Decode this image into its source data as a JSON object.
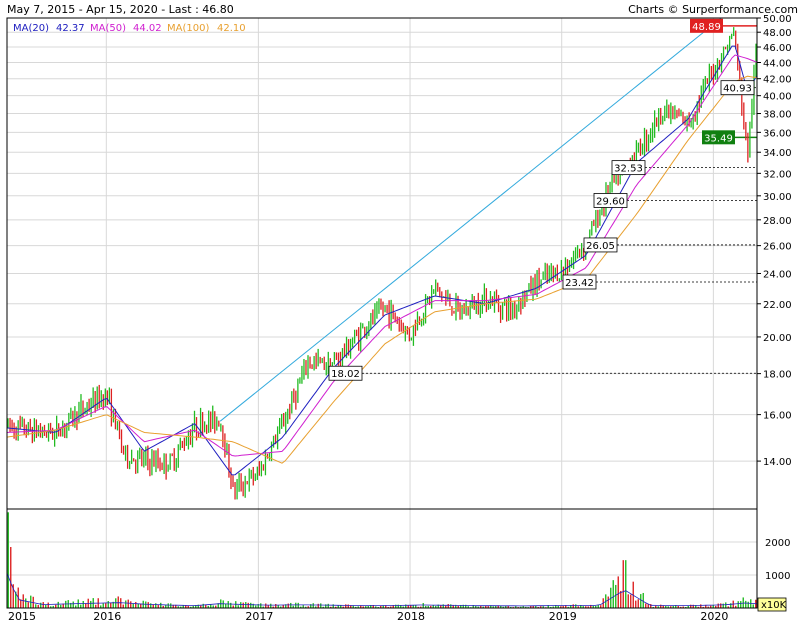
{
  "header": {
    "range": "May 7, 2015 - Apr 15, 2020 - Last : 46.80",
    "credit": "Charts © Surperformance.com"
  },
  "legend": [
    {
      "label": "MA(20)",
      "value": "42.37",
      "color": "#2020c0"
    },
    {
      "label": "MA(50)",
      "value": "44.02",
      "color": "#d020d0"
    },
    {
      "label": "MA(100)",
      "value": "42.10",
      "color": "#e8a030"
    }
  ],
  "colors": {
    "up": "#22bb22",
    "down": "#dd2222",
    "grid": "#d8d8d8",
    "trendline": "#33aadd",
    "volume_up": "#22bb22",
    "volume_down": "#dd2222",
    "label_red_bg": "#e02020",
    "label_green_bg": "#108010"
  },
  "price_axis": {
    "ticks": [
      "50.00",
      "48.00",
      "46.00",
      "44.00",
      "42.00",
      "40.00",
      "38.00",
      "36.00",
      "34.00",
      "32.00",
      "30.00",
      "28.00",
      "26.00",
      "24.00",
      "22.00",
      "20.00",
      "18.00",
      "16.00",
      "14.00"
    ],
    "scale": "log"
  },
  "volume_axis": {
    "ticks": [
      "2000",
      "1000"
    ],
    "unit": "x10K"
  },
  "x_axis": {
    "labels": [
      "2015",
      "2016",
      "2017",
      "2018",
      "2019",
      "2020"
    ]
  },
  "level_labels": [
    {
      "text": "48.89",
      "style": "red"
    },
    {
      "text": "40.93",
      "style": "box"
    },
    {
      "text": "35.49",
      "style": "green"
    },
    {
      "text": "32.53",
      "style": "box"
    },
    {
      "text": "29.60",
      "style": "box"
    },
    {
      "text": "26.05",
      "style": "box"
    },
    {
      "text": "23.42",
      "style": "box"
    },
    {
      "text": "18.02",
      "style": "box"
    }
  ],
  "chart_data": {
    "type": "line",
    "title": "",
    "x_range": [
      "2015-05-07",
      "2020-04-15"
    ],
    "ylim": [
      12.2,
      50
    ],
    "y_scale": "log",
    "last": 46.8,
    "series": [
      {
        "name": "Price",
        "x": [
          "2015-05-07",
          "2015-07-01",
          "2015-09-01",
          "2015-11-01",
          "2016-01-01",
          "2016-02-15",
          "2016-04-01",
          "2016-06-01",
          "2016-08-01",
          "2016-10-01",
          "2016-11-01",
          "2017-01-01",
          "2017-03-01",
          "2017-05-01",
          "2017-07-01",
          "2017-09-01",
          "2017-11-01",
          "2018-01-01",
          "2018-03-01",
          "2018-05-01",
          "2018-07-01",
          "2018-09-01",
          "2018-11-01",
          "2019-01-01",
          "2019-03-01",
          "2019-05-01",
          "2019-07-01",
          "2019-09-01",
          "2019-11-01",
          "2020-01-01",
          "2020-02-20",
          "2020-03-23",
          "2020-04-15"
        ],
        "values": [
          15.5,
          15.3,
          15.2,
          16.2,
          17.0,
          14.2,
          14.0,
          13.9,
          15.5,
          15.8,
          12.9,
          13.5,
          15.6,
          18.6,
          18.5,
          20.2,
          21.8,
          20.1,
          23.0,
          21.4,
          22.4,
          21.6,
          23.4,
          24.2,
          26.2,
          31.0,
          34.0,
          38.4,
          37.0,
          43.0,
          48.0,
          33.5,
          46.8
        ]
      },
      {
        "name": "MA(20)",
        "x": [
          "2015-05-07",
          "2015-09-01",
          "2016-01-01",
          "2016-04-01",
          "2016-08-01",
          "2016-11-01",
          "2017-03-01",
          "2017-07-01",
          "2017-11-01",
          "2018-03-01",
          "2018-07-01",
          "2018-11-01",
          "2019-03-01",
          "2019-07-01",
          "2019-11-01",
          "2020-02-20",
          "2020-03-23",
          "2020-04-15"
        ],
        "values": [
          15.4,
          15.2,
          16.8,
          14.4,
          15.6,
          13.4,
          15.0,
          18.3,
          21.3,
          22.5,
          22.0,
          23.0,
          25.3,
          33.0,
          37.4,
          46.6,
          40.5,
          42.37
        ]
      },
      {
        "name": "MA(50)",
        "x": [
          "2015-05-07",
          "2015-09-01",
          "2016-01-01",
          "2016-04-01",
          "2016-08-01",
          "2016-11-01",
          "2017-03-01",
          "2017-07-01",
          "2017-11-01",
          "2018-03-01",
          "2018-07-01",
          "2018-11-01",
          "2019-03-01",
          "2019-07-01",
          "2019-11-01",
          "2020-02-20",
          "2020-03-23",
          "2020-04-15"
        ],
        "values": [
          15.2,
          15.3,
          16.4,
          14.8,
          15.3,
          14.2,
          14.4,
          17.6,
          20.6,
          22.2,
          22.2,
          22.6,
          24.4,
          31.0,
          36.8,
          45.0,
          44.5,
          44.02
        ]
      },
      {
        "name": "MA(100)",
        "x": [
          "2015-05-07",
          "2015-09-01",
          "2016-01-01",
          "2016-04-01",
          "2016-08-01",
          "2016-11-01",
          "2017-03-01",
          "2017-07-01",
          "2017-11-01",
          "2018-03-01",
          "2018-07-01",
          "2018-11-01",
          "2019-03-01",
          "2019-07-01",
          "2019-11-01",
          "2020-02-20",
          "2020-03-23",
          "2020-04-15"
        ],
        "values": [
          15.0,
          15.3,
          16.0,
          15.2,
          15.0,
          14.8,
          13.9,
          16.6,
          19.6,
          21.5,
          22.0,
          22.3,
          23.6,
          28.5,
          35.2,
          41.6,
          42.3,
          42.1
        ]
      },
      {
        "name": "Trendline",
        "x": [
          "2016-10-01",
          "2020-01-20"
        ],
        "values": [
          15.7,
          50.0
        ]
      }
    ],
    "levels": [
      48.89,
      40.93,
      35.49,
      32.53,
      29.6,
      26.05,
      23.42,
      18.02
    ],
    "volume": {
      "unit": "x10K",
      "ylim": [
        0,
        3000
      ],
      "x": [
        "2015-05-07",
        "2015-06-01",
        "2015-08-01",
        "2015-10-01",
        "2015-12-01",
        "2016-02-01",
        "2016-04-01",
        "2016-06-01",
        "2016-08-01",
        "2016-10-01",
        "2016-12-01",
        "2017-02-01",
        "2017-04-01",
        "2017-06-01",
        "2017-08-01",
        "2017-10-01",
        "2017-12-01",
        "2018-02-01",
        "2018-04-01",
        "2018-06-01",
        "2018-08-01",
        "2018-10-01",
        "2018-12-01",
        "2019-02-01",
        "2019-04-01",
        "2019-06-01",
        "2019-08-01",
        "2019-10-01",
        "2019-12-01",
        "2020-02-01",
        "2020-03-15",
        "2020-04-15"
      ],
      "values": [
        2900,
        620,
        180,
        240,
        300,
        350,
        220,
        140,
        90,
        260,
        180,
        130,
        160,
        140,
        110,
        90,
        100,
        150,
        120,
        90,
        80,
        70,
        90,
        110,
        100,
        1450,
        120,
        90,
        110,
        170,
        320,
        250
      ]
    }
  }
}
